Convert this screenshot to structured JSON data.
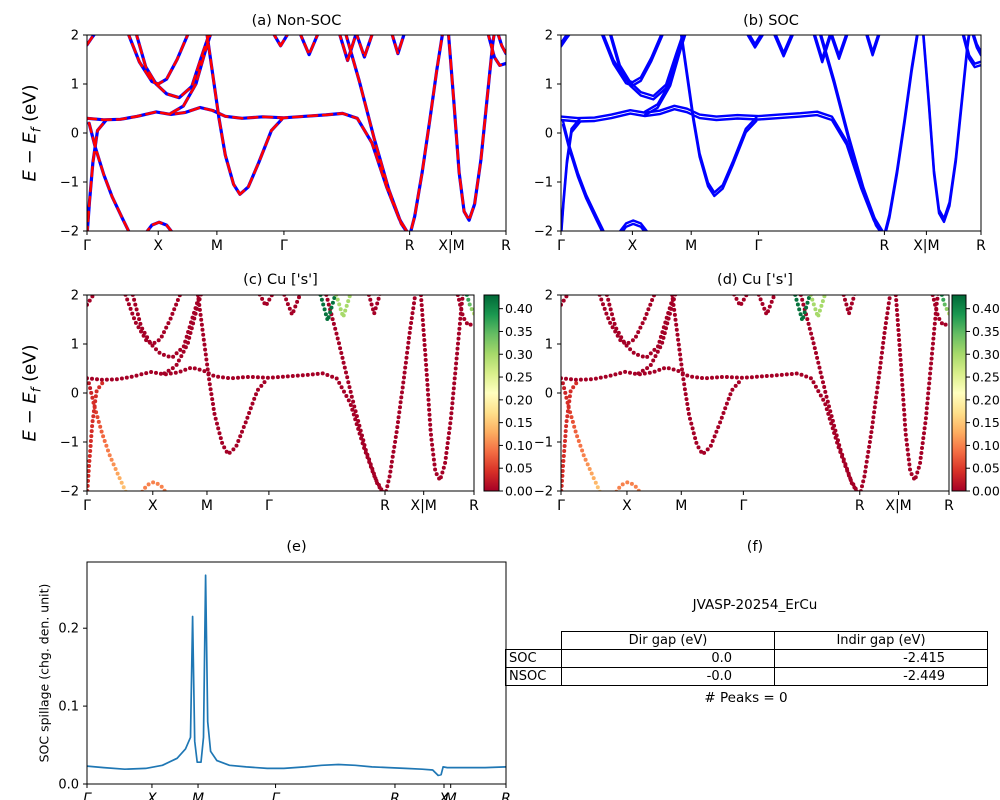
{
  "ylabel_band": {
    "E1": "E",
    "minus": " − ",
    "E2": "E",
    "sub": "f",
    "unit": " (eV)"
  },
  "ylabel_e": "SOC spillage (chg. den. unit)",
  "cmap": {
    "colors": [
      "#a50026",
      "#d73027",
      "#f46d43",
      "#fdae61",
      "#fee08b",
      "#ffffbf",
      "#d9ef8b",
      "#a6d96a",
      "#66bd63",
      "#1a9850",
      "#006837"
    ],
    "vmax": 0.43
  },
  "colorbar": {
    "ticks": [
      [
        0.4,
        "0.40"
      ],
      [
        0.35,
        "0.35"
      ],
      [
        0.3,
        "0.30"
      ],
      [
        0.25,
        "0.25"
      ],
      [
        0.2,
        "0.20"
      ],
      [
        0.15,
        "0.15"
      ],
      [
        0.1,
        "0.10"
      ],
      [
        0.05,
        "0.05"
      ],
      [
        0.0,
        "0.00"
      ]
    ]
  },
  "chart_data": [
    {
      "id": "a",
      "type": "line",
      "title": "(a) Non-SOC",
      "xlim": [
        0,
        1
      ],
      "ylim": [
        -2,
        2
      ],
      "yticks": [
        [
          -2,
          "−2"
        ],
        [
          -1,
          "−1"
        ],
        [
          0,
          "0"
        ],
        [
          1,
          "1"
        ],
        [
          2,
          "2"
        ]
      ],
      "xticks": [
        [
          0,
          "Γ"
        ],
        [
          0.17,
          "X"
        ],
        [
          0.31,
          "M"
        ],
        [
          0.47,
          "Γ"
        ],
        [
          0.77,
          "R"
        ],
        [
          0.87,
          "X|M"
        ],
        [
          1.0,
          "R"
        ]
      ],
      "styles": [
        {
          "color": "#0000ff",
          "width": 3.2
        },
        {
          "color": "#ff0000",
          "width": 2.6,
          "dash": "9,6"
        }
      ],
      "series": [
        {
          "name": "band-1",
          "points": [
            [
              0,
              0.3
            ],
            [
              0.04,
              0.27
            ],
            [
              0.08,
              0.28
            ],
            [
              0.12,
              0.34
            ],
            [
              0.165,
              0.43
            ],
            [
              0.2,
              0.38
            ],
            [
              0.235,
              0.42
            ],
            [
              0.27,
              0.52
            ],
            [
              0.3,
              0.46
            ],
            [
              0.33,
              0.34
            ],
            [
              0.37,
              0.3
            ],
            [
              0.42,
              0.33
            ],
            [
              0.47,
              0.31
            ],
            [
              0.52,
              0.34
            ],
            [
              0.57,
              0.37
            ],
            [
              0.61,
              0.4
            ],
            [
              0.645,
              0.3
            ],
            [
              0.68,
              -0.2
            ],
            [
              0.715,
              -1.1
            ],
            [
              0.745,
              -1.75
            ],
            [
              0.77,
              -2.1
            ]
          ],
          "v": 0.0
        },
        {
          "name": "band-2",
          "points": [
            [
              0.285,
              2.1
            ],
            [
              0.3,
              1.2
            ],
            [
              0.315,
              0.3
            ],
            [
              0.33,
              -0.45
            ],
            [
              0.35,
              -1.05
            ],
            [
              0.365,
              -1.25
            ],
            [
              0.385,
              -1.1
            ],
            [
              0.41,
              -0.6
            ],
            [
              0.44,
              0.05
            ],
            [
              0.465,
              0.28
            ]
          ],
          "v": 0.0
        },
        {
          "name": "band-3",
          "points": [
            [
              0.005,
              0.2
            ],
            [
              0.02,
              -0.3
            ],
            [
              0.04,
              -0.85
            ],
            [
              0.06,
              -1.3
            ],
            [
              0.085,
              -1.75
            ],
            [
              0.105,
              -2.1
            ]
          ],
          "vals": [
            0.02,
            0.05,
            0.08,
            0.1,
            0.13,
            0.16
          ]
        },
        {
          "name": "band-4",
          "points": [
            [
              0.0,
              -2.1
            ],
            [
              0.006,
              -1.4
            ],
            [
              0.014,
              -0.6
            ],
            [
              0.025,
              0.05
            ],
            [
              0.045,
              0.26
            ]
          ],
          "v": 0.04
        },
        {
          "name": "band-5",
          "points": [
            [
              0.095,
              2.1
            ],
            [
              0.125,
              1.45
            ],
            [
              0.155,
              1.05
            ],
            [
              0.17,
              1.0
            ],
            [
              0.19,
              1.1
            ],
            [
              0.215,
              1.5
            ],
            [
              0.245,
              2.1
            ]
          ],
          "v": 0.0
        },
        {
          "name": "band-6",
          "points": [
            [
              0.115,
              2.1
            ],
            [
              0.14,
              1.35
            ],
            [
              0.165,
              1.0
            ],
            [
              0.19,
              0.8
            ],
            [
              0.22,
              0.72
            ],
            [
              0.25,
              0.95
            ],
            [
              0.275,
              1.6
            ],
            [
              0.295,
              2.1
            ]
          ],
          "v": 0.0
        },
        {
          "name": "band-7",
          "points": [
            [
              0.615,
              2.1
            ],
            [
              0.65,
              1.05
            ],
            [
              0.685,
              -0.1
            ],
            [
              0.72,
              -1.15
            ],
            [
              0.75,
              -1.85
            ],
            [
              0.77,
              -2.1
            ],
            [
              0.782,
              -1.7
            ],
            [
              0.8,
              -0.8
            ],
            [
              0.818,
              0.25
            ],
            [
              0.835,
              1.3
            ],
            [
              0.85,
              2.1
            ]
          ],
          "v": 0.0
        },
        {
          "name": "band-8",
          "points": [
            [
              0.862,
              2.1
            ],
            [
              0.876,
              0.6
            ],
            [
              0.888,
              -0.8
            ],
            [
              0.9,
              -1.6
            ],
            [
              0.912,
              -1.78
            ],
            [
              0.925,
              -1.45
            ],
            [
              0.94,
              -0.55
            ],
            [
              0.955,
              0.7
            ],
            [
              0.968,
              1.8
            ],
            [
              0.973,
              2.1
            ]
          ],
          "v": 0.0
        },
        {
          "name": "band-9",
          "points": [
            [
              0.955,
              2.1
            ],
            [
              0.972,
              1.55
            ],
            [
              0.985,
              1.38
            ],
            [
              1.0,
              1.42
            ]
          ],
          "v": 0.0
        },
        {
          "name": "band-10",
          "points": [
            [
              0.978,
              2.1
            ],
            [
              0.99,
              1.78
            ],
            [
              1.0,
              1.62
            ]
          ],
          "vals": [
            0.42,
            0.34,
            0.28
          ]
        },
        {
          "name": "band-11",
          "points": [
            [
              0.505,
              2.1
            ],
            [
              0.53,
              1.6
            ],
            [
              0.555,
              2.1
            ]
          ],
          "v": 0.0
        },
        {
          "name": "band-12",
          "points": [
            [
              0.6,
              2.1
            ],
            [
              0.622,
              1.48
            ],
            [
              0.645,
              2.1
            ]
          ],
          "v": 0.42
        },
        {
          "name": "band-13",
          "points": [
            [
              0.64,
              2.1
            ],
            [
              0.662,
              1.55
            ],
            [
              0.684,
              2.1
            ]
          ],
          "v": 0.3
        },
        {
          "name": "band-14",
          "points": [
            [
              0.725,
              2.1
            ],
            [
              0.742,
              1.62
            ],
            [
              0.76,
              2.1
            ]
          ],
          "v": 0.0
        },
        {
          "name": "band-15",
          "points": [
            [
              0.2,
              0.4
            ],
            [
              0.23,
              0.55
            ],
            [
              0.26,
              1.0
            ],
            [
              0.285,
              1.75
            ],
            [
              0.298,
              2.1
            ]
          ],
          "v": 0.0
        },
        {
          "name": "band-16",
          "points": [
            [
              0.135,
              -2.1
            ],
            [
              0.155,
              -1.88
            ],
            [
              0.172,
              -1.82
            ],
            [
              0.19,
              -1.88
            ],
            [
              0.21,
              -2.1
            ]
          ],
          "v": 0.1
        },
        {
          "name": "band-17",
          "points": [
            [
              0.0,
              1.8
            ],
            [
              0.012,
              1.95
            ],
            [
              0.025,
              2.1
            ]
          ],
          "v": 0.0
        },
        {
          "name": "band-18",
          "points": [
            [
              0.44,
              2.1
            ],
            [
              0.462,
              1.78
            ],
            [
              0.485,
              2.1
            ]
          ],
          "v": 0.0
        }
      ]
    },
    {
      "id": "b",
      "type": "line",
      "title": "(b) SOC",
      "ref": "a",
      "styles": [
        {
          "color": "#0000ff",
          "width": 2.4,
          "dy": 0.035
        },
        {
          "color": "#0000ff",
          "width": 2.4,
          "dy": -0.035
        }
      ]
    },
    {
      "id": "c",
      "type": "scatter",
      "title": "(c) Cu ['s']",
      "ref": "a"
    },
    {
      "id": "d",
      "type": "scatter",
      "title": "(d) Cu ['s']",
      "ref": "a"
    },
    {
      "id": "e",
      "type": "line",
      "title": "(e)",
      "xlim": [
        0,
        1
      ],
      "ylim": [
        0,
        0.285
      ],
      "yticks": [
        [
          0,
          "0.0"
        ],
        [
          0.1,
          "0.1"
        ],
        [
          0.2,
          "0.2"
        ]
      ],
      "xticks": [
        [
          0,
          "Γ"
        ],
        [
          0.155,
          "X"
        ],
        [
          0.265,
          "M"
        ],
        [
          0.45,
          "Γ"
        ],
        [
          0.735,
          "R"
        ],
        [
          0.852,
          "X"
        ],
        [
          0.868,
          "M"
        ],
        [
          1.0,
          "R"
        ]
      ],
      "xtick_style": "italic",
      "styles": [
        {
          "color": "#1f77b4",
          "width": 1.7
        }
      ],
      "series": [
        {
          "name": "soc-spillage",
          "points": [
            [
              0,
              0.023
            ],
            [
              0.04,
              0.021
            ],
            [
              0.09,
              0.019
            ],
            [
              0.14,
              0.02
            ],
            [
              0.18,
              0.024
            ],
            [
              0.215,
              0.033
            ],
            [
              0.235,
              0.045
            ],
            [
              0.247,
              0.06
            ],
            [
              0.252,
              0.215
            ],
            [
              0.257,
              0.055
            ],
            [
              0.263,
              0.028
            ],
            [
              0.272,
              0.028
            ],
            [
              0.278,
              0.06
            ],
            [
              0.283,
              0.268
            ],
            [
              0.288,
              0.08
            ],
            [
              0.295,
              0.042
            ],
            [
              0.31,
              0.03
            ],
            [
              0.34,
              0.024
            ],
            [
              0.38,
              0.022
            ],
            [
              0.43,
              0.02
            ],
            [
              0.47,
              0.02
            ],
            [
              0.52,
              0.022
            ],
            [
              0.56,
              0.024
            ],
            [
              0.6,
              0.025
            ],
            [
              0.64,
              0.024
            ],
            [
              0.68,
              0.022
            ],
            [
              0.72,
              0.021
            ],
            [
              0.76,
              0.02
            ],
            [
              0.8,
              0.019
            ],
            [
              0.825,
              0.018
            ],
            [
              0.838,
              0.011
            ],
            [
              0.845,
              0.012
            ],
            [
              0.85,
              0.022
            ],
            [
              0.86,
              0.021
            ],
            [
              0.9,
              0.021
            ],
            [
              0.95,
              0.021
            ],
            [
              1.0,
              0.022
            ]
          ]
        }
      ]
    }
  ],
  "panel_f": {
    "title": "(f)",
    "heading": "JVASP-20254_ErCu",
    "table": {
      "headers": [
        "",
        "Dir gap (eV)",
        "Indir gap (eV)"
      ],
      "rows": [
        [
          "SOC",
          "0.0",
          "-2.415"
        ],
        [
          "NSOC",
          "-0.0",
          "-2.449"
        ]
      ]
    },
    "note": "# Peaks = 0"
  }
}
